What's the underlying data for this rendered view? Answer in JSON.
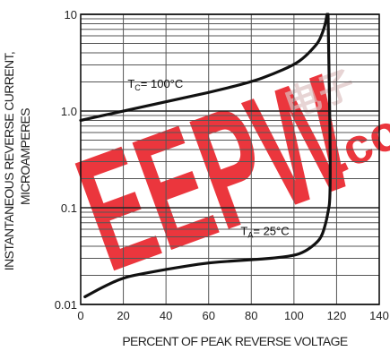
{
  "chart_data": {
    "type": "line",
    "title": "",
    "xlabel": "PERCENT OF PEAK REVERSE VOLTAGE",
    "ylabel_lines": [
      "INSTANTANEOUS REVERSE CURRENT,",
      "MICROAMPERES"
    ],
    "xlim": [
      0,
      140
    ],
    "ylim": [
      0.01,
      10
    ],
    "yscale": "log",
    "x_ticks": [
      0,
      20,
      40,
      60,
      80,
      100,
      120,
      140
    ],
    "x_tick_labels": [
      "0",
      "20",
      "40",
      "60",
      "80",
      "100",
      "120",
      "140"
    ],
    "y_ticks": [
      0.01,
      0.1,
      1.0,
      10
    ],
    "y_tick_labels": [
      "0.01",
      "0.1",
      "1.0",
      "10"
    ],
    "grid": true,
    "series": [
      {
        "name": "TC = 100°C",
        "color": "#111111",
        "x": [
          0,
          20,
          40,
          60,
          80,
          90,
          100,
          105,
          110,
          112,
          114,
          115,
          115.5
        ],
        "y": [
          0.8,
          1.0,
          1.25,
          1.55,
          2.0,
          2.4,
          3.0,
          3.6,
          4.7,
          5.4,
          7.0,
          8.5,
          10
        ]
      },
      {
        "name": "TA = 25°C",
        "color": "#111111",
        "x": [
          2,
          10,
          20,
          30,
          40,
          50,
          60,
          70,
          80,
          90,
          100,
          105,
          110,
          113,
          115,
          116,
          117,
          117,
          116
        ],
        "y": [
          0.012,
          0.015,
          0.019,
          0.021,
          0.023,
          0.025,
          0.027,
          0.028,
          0.029,
          0.03,
          0.032,
          0.035,
          0.042,
          0.05,
          0.07,
          0.09,
          0.12,
          0.5,
          10
        ]
      }
    ],
    "annotations": [
      {
        "main": "T",
        "sub": "C",
        "rest": "= 100°C",
        "x": 22,
        "y": 1.75
      },
      {
        "main": "T",
        "sub": "A",
        "rest": "= 25°C",
        "x": 75,
        "y": 0.052
      }
    ]
  },
  "watermark": {
    "text": "EEPW",
    "color": "#e8141c",
    "dot_com": ".co",
    "seal_chars": "电子",
    "seal_color": "#d7b8b8"
  }
}
